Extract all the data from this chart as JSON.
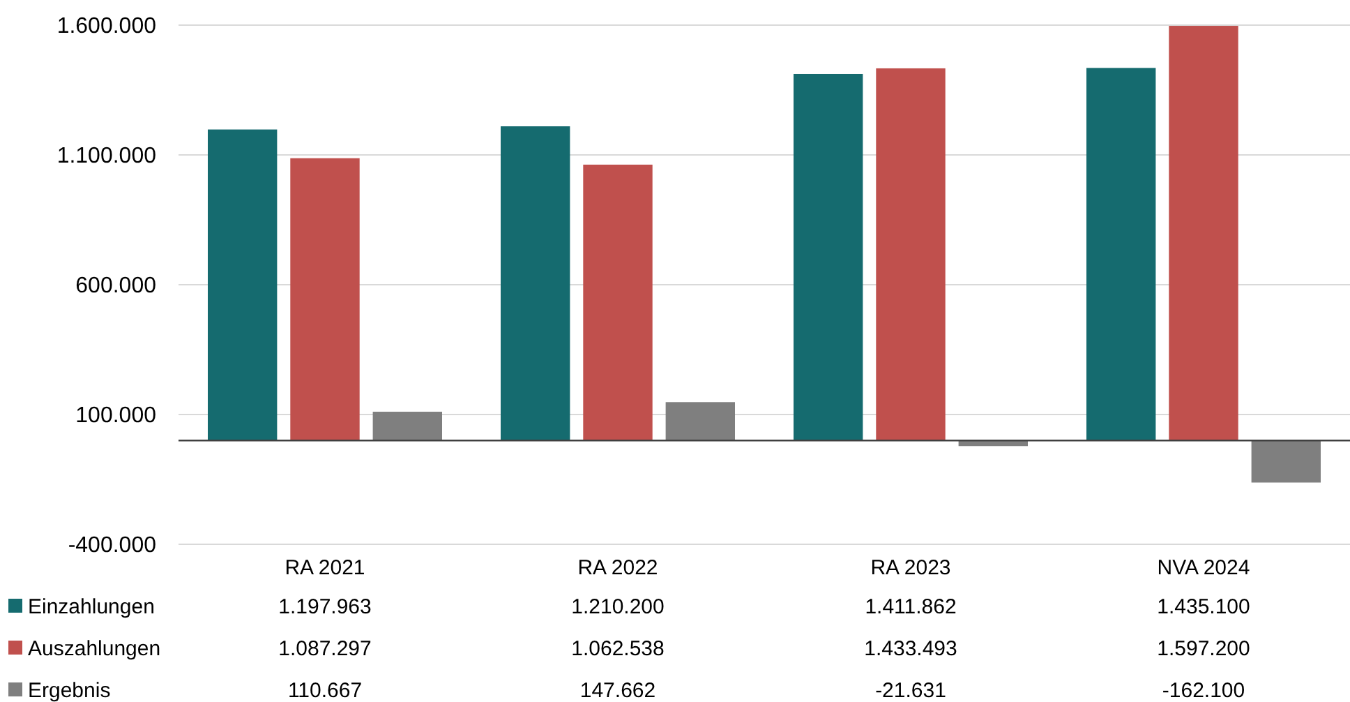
{
  "chart_data": {
    "type": "bar",
    "categories": [
      "RA 2021",
      "RA 2022",
      "RA 2023",
      "NVA 2024"
    ],
    "series": [
      {
        "name": "Einzahlungen",
        "color": "#156b6f",
        "values": [
          1197963,
          1210200,
          1411862,
          1435100
        ],
        "value_labels": [
          "1.197.963",
          "1.210.200",
          "1.411.862",
          "1.435.100"
        ]
      },
      {
        "name": "Auszahlungen",
        "color": "#c0504d",
        "values": [
          1087297,
          1062538,
          1433493,
          1597200
        ],
        "value_labels": [
          "1.087.297",
          "1.062.538",
          "1.433.493",
          "1.597.200"
        ]
      },
      {
        "name": "Ergebnis",
        "color": "#7f7f7f",
        "values": [
          110667,
          147662,
          -21631,
          -162100
        ],
        "value_labels": [
          "110.667",
          "147.662",
          "-21.631",
          "-162.100"
        ]
      }
    ],
    "ylim": [
      -400000,
      1600000
    ],
    "yticks": [
      {
        "value": -400000,
        "label": "-400.000"
      },
      {
        "value": 100000,
        "label": "100.000"
      },
      {
        "value": 600000,
        "label": "600.000"
      },
      {
        "value": 1100000,
        "label": "1.100.000"
      },
      {
        "value": 1600000,
        "label": "1.600.000"
      }
    ],
    "grid": "y",
    "legend": "bottom"
  }
}
